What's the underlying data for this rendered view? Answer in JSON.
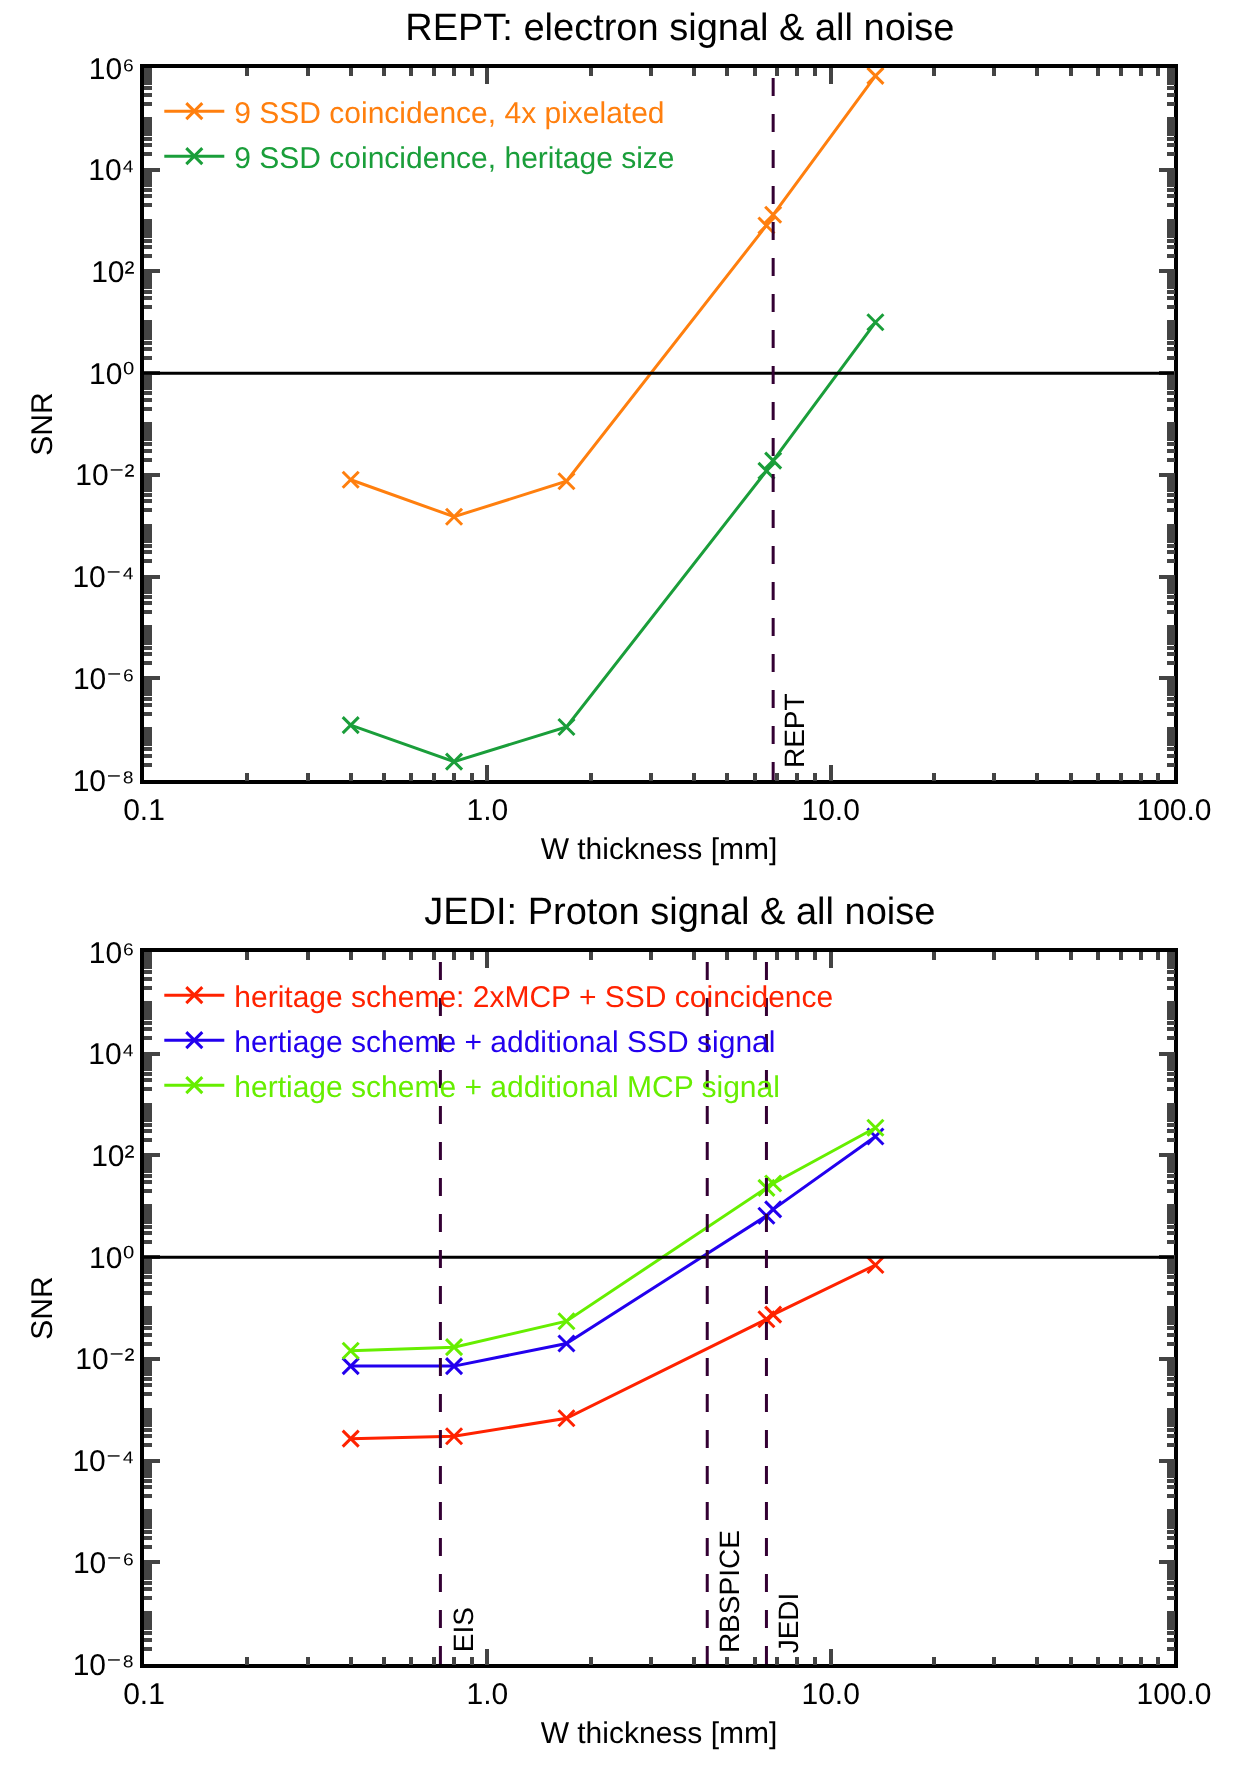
{
  "chart_data": [
    {
      "type": "line",
      "title": "REPT: electron signal & all noise",
      "xlabel": "W thickness [mm]",
      "ylabel": "SNR",
      "log": "xy",
      "marker": "cross",
      "line_style": "solid",
      "grid": false,
      "legend": "top left",
      "xlim": [
        0.1,
        100
      ],
      "xticks": [
        {
          "value": 0.1,
          "label": "0.1"
        },
        {
          "value": 1,
          "label": "1.0"
        },
        {
          "value": 10,
          "label": "10.0"
        },
        {
          "value": 100,
          "label": "100.0"
        }
      ],
      "ylim": [
        1e-08,
        1000000.0
      ],
      "yticks": [
        {
          "value": 1e-08,
          "label": "10⁻⁸"
        },
        {
          "value": 1e-06,
          "label": "10⁻⁶"
        },
        {
          "value": 0.0001,
          "label": "10⁻⁴"
        },
        {
          "value": 0.01,
          "label": "10⁻²"
        },
        {
          "value": 1,
          "label": "10⁰"
        },
        {
          "value": 100,
          "label": "10²"
        },
        {
          "value": 10000,
          "label": "10⁴"
        },
        {
          "value": 1000000,
          "label": "10⁶"
        }
      ],
      "x": [
        0.4,
        0.8,
        1.7,
        6.5,
        6.8,
        13.5
      ],
      "series": [
        {
          "name": "9 SSD coincidence, 4x pixelated",
          "color": "#ff7f0e",
          "values": [
            0.008,
            0.0015,
            0.0075,
            800,
            1300,
            700000
          ]
        },
        {
          "name": "9 SSD coincidence, heritage size",
          "color": "#1a9e3a",
          "values": [
            1.2e-07,
            2.3e-08,
            1.1e-07,
            0.012,
            0.019,
            10
          ]
        }
      ],
      "ref_lines": [
        {
          "axis": "y",
          "value": 1,
          "color": "#000000",
          "line_style": "solid"
        },
        {
          "axis": "x",
          "value": 6.8,
          "label": "REPT",
          "color": "#330033",
          "line_style": "dashed"
        }
      ]
    },
    {
      "type": "line",
      "title": "JEDI: Proton signal & all noise",
      "xlabel": "W thickness [mm]",
      "ylabel": "SNR",
      "log": "xy",
      "marker": "cross",
      "line_style": "solid",
      "grid": false,
      "legend": "top left",
      "xlim": [
        0.1,
        100
      ],
      "xticks": [
        {
          "value": 0.1,
          "label": "0.1"
        },
        {
          "value": 1,
          "label": "1.0"
        },
        {
          "value": 10,
          "label": "10.0"
        },
        {
          "value": 100,
          "label": "100.0"
        }
      ],
      "ylim": [
        1e-08,
        1000000.0
      ],
      "yticks": [
        {
          "value": 1e-08,
          "label": "10⁻⁸"
        },
        {
          "value": 1e-06,
          "label": "10⁻⁶"
        },
        {
          "value": 0.0001,
          "label": "10⁻⁴"
        },
        {
          "value": 0.01,
          "label": "10⁻²"
        },
        {
          "value": 1,
          "label": "10⁰"
        },
        {
          "value": 100,
          "label": "10²"
        },
        {
          "value": 10000,
          "label": "10⁴"
        },
        {
          "value": 1000000,
          "label": "10⁶"
        }
      ],
      "x": [
        0.4,
        0.8,
        1.7,
        6.5,
        6.8,
        13.5
      ],
      "series": [
        {
          "name": "heritage scheme: 2xMCP + SSD coincidence",
          "color": "#ff2200",
          "values": [
            0.00027,
            0.0003,
            0.00068,
            0.06,
            0.074,
            0.7
          ]
        },
        {
          "name": "hertiage scheme + additional SSD signal",
          "color": "#2200ee",
          "values": [
            0.0072,
            0.0072,
            0.02,
            6.5,
            8.7,
            235
          ]
        },
        {
          "name": "hertiage scheme + additional MCP signal",
          "color": "#66ee00",
          "values": [
            0.0144,
            0.017,
            0.055,
            23,
            28,
            350
          ]
        }
      ],
      "ref_lines": [
        {
          "axis": "y",
          "value": 1,
          "color": "#000000",
          "line_style": "solid"
        },
        {
          "axis": "x",
          "value": 0.73,
          "label": "EIS",
          "color": "#330033",
          "line_style": "dashed"
        },
        {
          "axis": "x",
          "value": 4.37,
          "label": "RBSPICE",
          "color": "#330033",
          "line_style": "dashed"
        },
        {
          "axis": "x",
          "value": 6.5,
          "label": "JEDI",
          "color": "#330033",
          "line_style": "dashed"
        }
      ]
    }
  ]
}
